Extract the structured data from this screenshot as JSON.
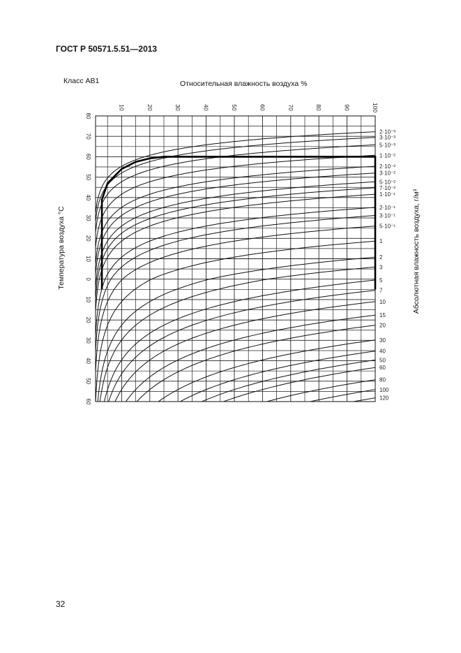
{
  "header": {
    "doc_id": "ГОСТ Р 50571.5.51—2013",
    "class_label": "Класс АВ1",
    "page_number": "32"
  },
  "chart_data": {
    "type": "line",
    "title": "Относительная влажность воздуха %",
    "xlabel": "Относительная влажность воздуха %",
    "ylabel": "Температура воздуха °С",
    "y2label": "Абсолютная влажность воздуха, г/м³",
    "xlim": [
      0,
      100
    ],
    "ylim": [
      -80,
      60
    ],
    "y_inverted": true,
    "grid": true,
    "x_ticks": [
      "10",
      "20",
      "30",
      "40",
      "50",
      "60",
      "70",
      "80",
      "90",
      "100"
    ],
    "y_ticks": [
      -80,
      -70,
      -60,
      -50,
      -40,
      -30,
      -20,
      -10,
      0,
      10,
      20,
      30,
      40,
      50,
      60
    ],
    "y_tick_labels": [
      "80",
      "70",
      "60",
      "50",
      "40",
      "30",
      "20",
      "10",
      "0",
      "10",
      "20",
      "30",
      "40",
      "50",
      "60"
    ],
    "absolute_humidity_lines": [
      {
        "value": 0.002,
        "label": "2·10⁻³"
      },
      {
        "value": 0.003,
        "label": "3·10⁻³"
      },
      {
        "value": 0.005,
        "label": "5·10⁻³"
      },
      {
        "value": 0.01,
        "label": "1·10⁻²"
      },
      {
        "value": 0.02,
        "label": "2·10⁻²"
      },
      {
        "value": 0.03,
        "label": "3·10⁻²"
      },
      {
        "value": 0.05,
        "label": "5·10⁻²"
      },
      {
        "value": 0.07,
        "label": "7·10⁻²"
      },
      {
        "value": 0.1,
        "label": "1·10⁻¹"
      },
      {
        "value": 0.2,
        "label": "2·10⁻¹"
      },
      {
        "value": 0.3,
        "label": "3·10⁻¹"
      },
      {
        "value": 0.5,
        "label": "5·10⁻¹"
      },
      {
        "value": 1,
        "label": "1"
      },
      {
        "value": 2,
        "label": "2"
      },
      {
        "value": 3,
        "label": "3"
      },
      {
        "value": 5,
        "label": "5"
      },
      {
        "value": 7,
        "label": "7"
      },
      {
        "value": 10,
        "label": "10"
      },
      {
        "value": 15,
        "label": "15"
      },
      {
        "value": 20,
        "label": "20"
      },
      {
        "value": 30,
        "label": "30"
      },
      {
        "value": 40,
        "label": "40"
      },
      {
        "value": 50,
        "label": "50"
      },
      {
        "value": 60,
        "label": "60"
      },
      {
        "value": 80,
        "label": "80"
      },
      {
        "value": 100,
        "label": "100"
      },
      {
        "value": 120,
        "label": "120"
      }
    ],
    "class_region": {
      "name": "АВ1",
      "points": [
        [
          3,
          5
        ],
        [
          3,
          -39
        ],
        [
          5,
          -47
        ],
        [
          10,
          -54
        ],
        [
          15,
          -57.5
        ],
        [
          20,
          -59.2
        ],
        [
          25,
          -60
        ],
        [
          100,
          -60
        ],
        [
          100,
          5
        ]
      ]
    }
  }
}
